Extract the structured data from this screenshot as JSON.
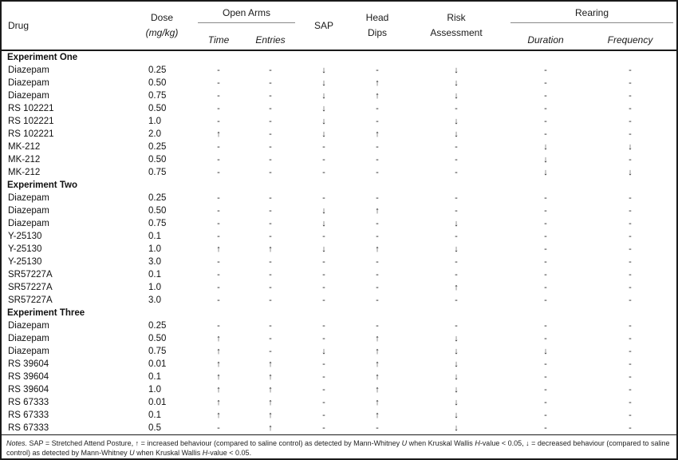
{
  "table": {
    "headers": {
      "drug": "Drug",
      "dose_line1": "Dose",
      "dose_line2": "(mg/kg)",
      "open_arms": "Open Arms",
      "time": "Time",
      "entries": "Entries",
      "sap": "SAP",
      "head_dips_line1": "Head",
      "head_dips_line2": "Dips",
      "risk_line1": "Risk",
      "risk_line2": "Assessment",
      "rearing": "Rearing",
      "duration": "Duration",
      "frequency": "Frequency"
    },
    "column_keys": [
      "open-arms-time",
      "open-arms-entries",
      "sap",
      "head-dips",
      "risk-assessment",
      "rearing-duration",
      "rearing-frequency"
    ],
    "symbols": {
      "increase": "↑",
      "decrease": "↓",
      "none": "-"
    },
    "sections": [
      {
        "title": "Experiment One",
        "rows": [
          {
            "drug": "Diazepam",
            "dose": "0.25",
            "cells": [
              "-",
              "-",
              "↓",
              "-",
              "↓",
              "-",
              "-"
            ]
          },
          {
            "drug": "Diazepam",
            "dose": "0.50",
            "cells": [
              "-",
              "-",
              "↓",
              "↑",
              "↓",
              "-",
              "-"
            ]
          },
          {
            "drug": "Diazepam",
            "dose": "0.75",
            "cells": [
              "-",
              "-",
              "↓",
              "↑",
              "↓",
              "-",
              "-"
            ]
          },
          {
            "drug": "RS 102221",
            "dose": "0.50",
            "cells": [
              "-",
              "-",
              "↓",
              "-",
              "-",
              "-",
              "-"
            ]
          },
          {
            "drug": "RS 102221",
            "dose": "1.0",
            "cells": [
              "-",
              "-",
              "↓",
              "-",
              "↓",
              "-",
              "-"
            ]
          },
          {
            "drug": "RS 102221",
            "dose": "2.0",
            "cells": [
              "↑",
              "-",
              "↓",
              "↑",
              "↓",
              "-",
              "-"
            ]
          },
          {
            "drug": "MK-212",
            "dose": "0.25",
            "cells": [
              "-",
              "-",
              "-",
              "-",
              "-",
              "↓",
              "↓"
            ]
          },
          {
            "drug": "MK-212",
            "dose": "0.50",
            "cells": [
              "-",
              "-",
              "-",
              "-",
              "-",
              "↓",
              "-"
            ]
          },
          {
            "drug": "MK-212",
            "dose": "0.75",
            "cells": [
              "-",
              "-",
              "-",
              "-",
              "-",
              "↓",
              "↓"
            ]
          }
        ]
      },
      {
        "title": "Experiment Two",
        "rows": [
          {
            "drug": "Diazepam",
            "dose": "0.25",
            "cells": [
              "-",
              "-",
              "-",
              "-",
              "-",
              "-",
              "-"
            ]
          },
          {
            "drug": "Diazepam",
            "dose": "0.50",
            "cells": [
              "-",
              "-",
              "↓",
              "↑",
              "-",
              "-",
              "-"
            ]
          },
          {
            "drug": "Diazepam",
            "dose": "0.75",
            "cells": [
              "-",
              "-",
              "↓",
              "-",
              "↓",
              "-",
              "-"
            ]
          },
          {
            "drug": "Y-25130",
            "dose": "0.1",
            "cells": [
              "-",
              "-",
              "-",
              "-",
              "-",
              "-",
              "-"
            ]
          },
          {
            "drug": "Y-25130",
            "dose": "1.0",
            "cells": [
              "↑",
              "↑",
              "↓",
              "↑",
              "↓",
              "-",
              "-"
            ]
          },
          {
            "drug": "Y-25130",
            "dose": "3.0",
            "cells": [
              "-",
              "-",
              "-",
              "-",
              "-",
              "-",
              "-"
            ]
          },
          {
            "drug": "SR57227A",
            "dose": "0.1",
            "cells": [
              "-",
              "-",
              "-",
              "-",
              "-",
              "-",
              "-"
            ]
          },
          {
            "drug": "SR57227A",
            "dose": "1.0",
            "cells": [
              "-",
              "-",
              "-",
              "-",
              "↑",
              "-",
              "-"
            ]
          },
          {
            "drug": "SR57227A",
            "dose": "3.0",
            "cells": [
              "-",
              "-",
              "-",
              "-",
              "-",
              "-",
              "-"
            ]
          }
        ]
      },
      {
        "title": "Experiment Three",
        "rows": [
          {
            "drug": "Diazepam",
            "dose": "0.25",
            "cells": [
              "-",
              "-",
              "-",
              "-",
              "-",
              "-",
              "-"
            ]
          },
          {
            "drug": "Diazepam",
            "dose": "0.50",
            "cells": [
              "↑",
              "-",
              "-",
              "↑",
              "↓",
              "-",
              "-"
            ]
          },
          {
            "drug": "Diazepam",
            "dose": "0.75",
            "cells": [
              "↑",
              "-",
              "↓",
              "↑",
              "↓",
              "↓",
              "-"
            ]
          },
          {
            "drug": "RS 39604",
            "dose": "0.01",
            "cells": [
              "↑",
              "↑",
              "-",
              "↑",
              "↓",
              "-",
              "-"
            ]
          },
          {
            "drug": "RS 39604",
            "dose": "0.1",
            "cells": [
              "↑",
              "↑",
              "-",
              "↑",
              "↓",
              "-",
              "-"
            ]
          },
          {
            "drug": "RS 39604",
            "dose": "1.0",
            "cells": [
              "↑",
              "↑",
              "-",
              "↑",
              "↓",
              "-",
              "-"
            ]
          },
          {
            "drug": "RS 67333",
            "dose": "0.01",
            "cells": [
              "↑",
              "↑",
              "-",
              "↑",
              "↓",
              "-",
              "-"
            ]
          },
          {
            "drug": "RS 67333",
            "dose": "0.1",
            "cells": [
              "↑",
              "↑",
              "-",
              "↑",
              "↓",
              "-",
              "-"
            ]
          },
          {
            "drug": "RS 67333",
            "dose": "0.5",
            "cells": [
              "-",
              "↑",
              "-",
              "-",
              "↓",
              "-",
              "-"
            ]
          }
        ]
      }
    ],
    "notes_segments": [
      {
        "text": "Notes.",
        "italic": true
      },
      {
        "text": " SAP = Stretched Attend Posture, ↑ = increased behaviour (compared to saline control) as detected by Mann-Whitney ",
        "italic": false
      },
      {
        "text": "U",
        "italic": true
      },
      {
        "text": " when Kruskal Wallis ",
        "italic": false
      },
      {
        "text": "H",
        "italic": true
      },
      {
        "text": "-value < 0.05, ↓ = decreased behaviour (compared to saline control) as detected by Mann-Whitney ",
        "italic": false
      },
      {
        "text": "U",
        "italic": true
      },
      {
        "text": " when Kruskal Wallis ",
        "italic": false
      },
      {
        "text": "H",
        "italic": true
      },
      {
        "text": "-value < 0.05.",
        "italic": false
      }
    ]
  }
}
